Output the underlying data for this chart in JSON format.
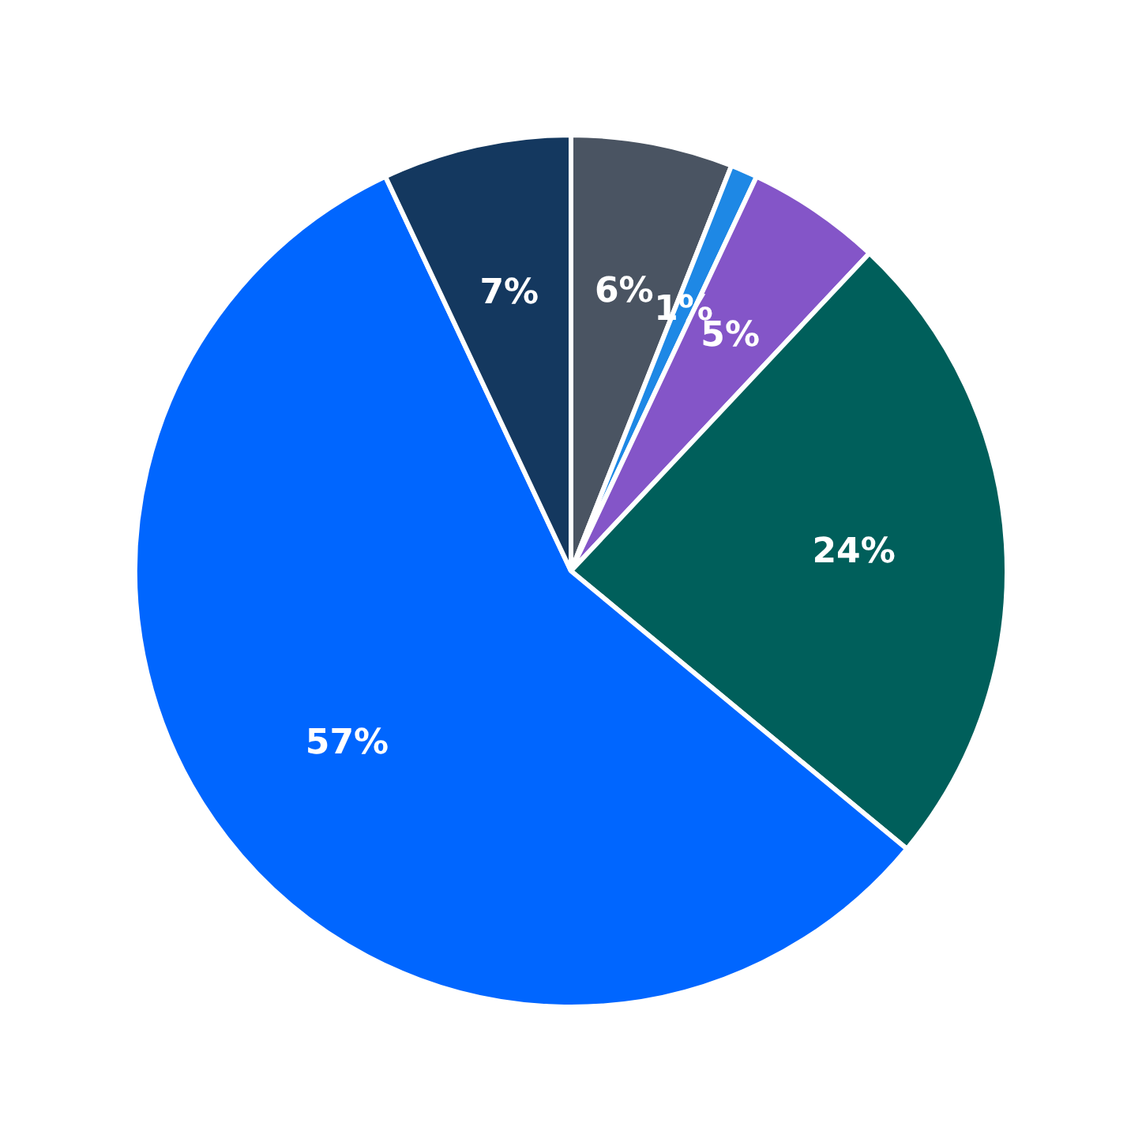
{
  "chart_data": {
    "type": "pie",
    "categories": [
      null,
      null,
      null,
      null,
      null,
      null
    ],
    "values": [
      6,
      1,
      5,
      24,
      57,
      7
    ],
    "colors": [
      "#4a5462",
      "#1e88e5",
      "#8455c8",
      "#005f5b",
      "#0066ff",
      "#14385f"
    ],
    "value_labels": [
      "6%",
      "1%",
      "5%",
      "24%",
      "57%",
      "7%"
    ],
    "legend": false
  }
}
